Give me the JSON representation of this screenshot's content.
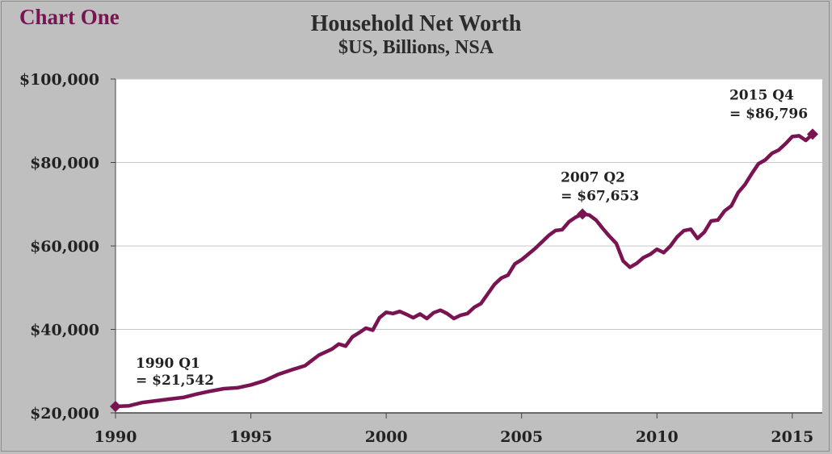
{
  "header": {
    "chart_label": "Chart One",
    "title": "Household Net Worth",
    "subtitle": "$US, Billions, NSA"
  },
  "colors": {
    "line": "#7a1351",
    "label": "#7a1351",
    "background": "#bfbfbf",
    "plot": "#ffffff",
    "grid": "#c8c8c8"
  },
  "chart_data": {
    "type": "line",
    "title": "Household Net Worth",
    "subtitle": "$US, Billions, NSA",
    "xlabel": "",
    "ylabel": "",
    "xlim": [
      1990,
      2015.9
    ],
    "ylim": [
      20000,
      100000
    ],
    "grid": "horizontal",
    "y_ticks": [
      {
        "value": 20000,
        "label": "$20,000"
      },
      {
        "value": 40000,
        "label": "$40,000"
      },
      {
        "value": 60000,
        "label": "$60,000"
      },
      {
        "value": 80000,
        "label": "$80,000"
      },
      {
        "value": 100000,
        "label": "$100,000"
      }
    ],
    "x_ticks": [
      {
        "value": 1990,
        "label": "1990"
      },
      {
        "value": 1995,
        "label": "1995"
      },
      {
        "value": 2000,
        "label": "2000"
      },
      {
        "value": 2005,
        "label": "2005"
      },
      {
        "value": 2010,
        "label": "2010"
      },
      {
        "value": 2015,
        "label": "2015"
      }
    ],
    "series": [
      {
        "x": [
          1990.0,
          1990.5,
          1991.0,
          1991.5,
          1992.0,
          1992.5,
          1993.0,
          1993.5,
          1994.0,
          1994.5,
          1995.0,
          1995.5,
          1996.0,
          1996.5,
          1997.0,
          1997.5,
          1998.0,
          1998.25,
          1998.5,
          1998.75,
          1999.0,
          1999.25,
          1999.5,
          1999.75,
          2000.0,
          2000.25,
          2000.5,
          2000.75,
          2001.0,
          2001.25,
          2001.5,
          2001.75,
          2002.0,
          2002.25,
          2002.5,
          2002.75,
          2003.0,
          2003.25,
          2003.5,
          2003.75,
          2004.0,
          2004.25,
          2004.5,
          2004.75,
          2005.0,
          2005.5,
          2006.0,
          2006.25,
          2006.5,
          2006.75,
          2007.0,
          2007.25,
          2007.5,
          2007.75,
          2008.0,
          2008.25,
          2008.5,
          2008.75,
          2009.0,
          2009.25,
          2009.5,
          2009.75,
          2010.0,
          2010.25,
          2010.5,
          2010.75,
          2011.0,
          2011.25,
          2011.5,
          2011.75,
          2012.0,
          2012.25,
          2012.5,
          2012.75,
          2013.0,
          2013.25,
          2013.5,
          2013.75,
          2014.0,
          2014.25,
          2014.5,
          2014.75,
          2015.0,
          2015.25,
          2015.5,
          2015.75
        ],
        "values": [
          21542,
          21700,
          22500,
          22900,
          23300,
          23700,
          24500,
          25200,
          25800,
          26000,
          26700,
          27700,
          29200,
          30300,
          31300,
          33800,
          35300,
          36500,
          36000,
          38200,
          39200,
          40300,
          39800,
          42800,
          44100,
          43800,
          44300,
          43600,
          42800,
          43700,
          42600,
          44000,
          44600,
          43800,
          42600,
          43400,
          43800,
          45300,
          46200,
          48500,
          50800,
          52300,
          53000,
          55700,
          56700,
          59400,
          62500,
          63700,
          63900,
          65800,
          66900,
          67653,
          67400,
          66200,
          64200,
          62300,
          60600,
          56400,
          54900,
          55800,
          57200,
          58000,
          59200,
          58400,
          60000,
          62200,
          63700,
          64000,
          61800,
          63300,
          66000,
          66200,
          68400,
          69600,
          72800,
          74700,
          77300,
          79700,
          80600,
          82200,
          83000,
          84500,
          86200,
          86400,
          85300,
          86796
        ]
      }
    ],
    "annotations": [
      {
        "line1": "1990 Q1",
        "line2": "= $21,542",
        "x": 1990.0,
        "y": 21542
      },
      {
        "line1": "2007 Q2",
        "line2": "= $67,653",
        "x": 2007.25,
        "y": 67653
      },
      {
        "line1": "2015 Q4",
        "line2": "= $86,796",
        "x": 2015.75,
        "y": 86796
      }
    ]
  }
}
